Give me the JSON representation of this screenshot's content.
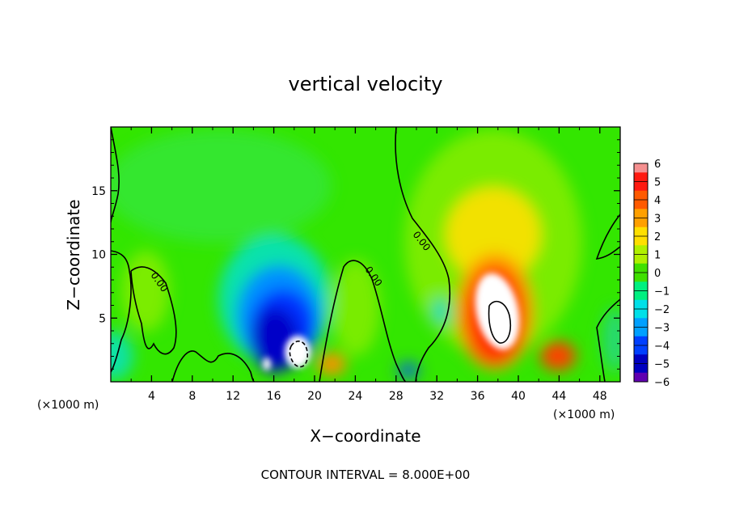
{
  "chart_data": {
    "type": "heatmap",
    "title": "vertical velocity",
    "xlabel": "X−coordinate",
    "ylabel": "Z−coordinate",
    "x_unit_left": "(×1000 m)",
    "x_unit_right": "(×1000 m)",
    "xlim": [
      0,
      50
    ],
    "ylim": [
      0,
      20
    ],
    "xticks": [
      "4",
      "8",
      "12",
      "16",
      "20",
      "24",
      "28",
      "32",
      "36",
      "40",
      "44",
      "48"
    ],
    "xtick_values": [
      4,
      8,
      12,
      16,
      20,
      24,
      28,
      32,
      36,
      40,
      44,
      48
    ],
    "yticks": [
      "5",
      "10",
      "15"
    ],
    "ytick_values": [
      5,
      10,
      15
    ],
    "colorbar": {
      "labels": [
        "6",
        "5",
        "4",
        "3",
        "2",
        "1",
        "0",
        "−1",
        "−2",
        "−3",
        "−4",
        "−5",
        "−6"
      ],
      "values": [
        6,
        5,
        4,
        3,
        2,
        1,
        0,
        -1,
        -2,
        -3,
        -4,
        -5,
        -6
      ],
      "range": [
        -6,
        6
      ],
      "colors": [
        "#f59090",
        "#ff1a10",
        "#ff5a00",
        "#ffa000",
        "#ffdf00",
        "#b0f000",
        "#40e000",
        "#00f080",
        "#00e0e8",
        "#00a0ff",
        "#0040ff",
        "#0000c0",
        "#6000b0"
      ]
    },
    "features": [
      {
        "kind": "updraft",
        "x": 37.8,
        "z": 5.5,
        "peak": 20
      },
      {
        "kind": "updraft",
        "x": 44.3,
        "z": 2.2,
        "peak": 4
      },
      {
        "kind": "downdraft",
        "x": 17.0,
        "z": 3.8,
        "peak": -16
      },
      {
        "kind": "downdraft",
        "x": 15.2,
        "z": 6.5,
        "peak": -5
      },
      {
        "kind": "downdraft",
        "x": 21.0,
        "z": 6.0,
        "peak": -3
      }
    ],
    "contour_labels": [
      "0.00",
      "0.00",
      "0.00"
    ],
    "footer": "CONTOUR INTERVAL = 8.000E+00"
  }
}
